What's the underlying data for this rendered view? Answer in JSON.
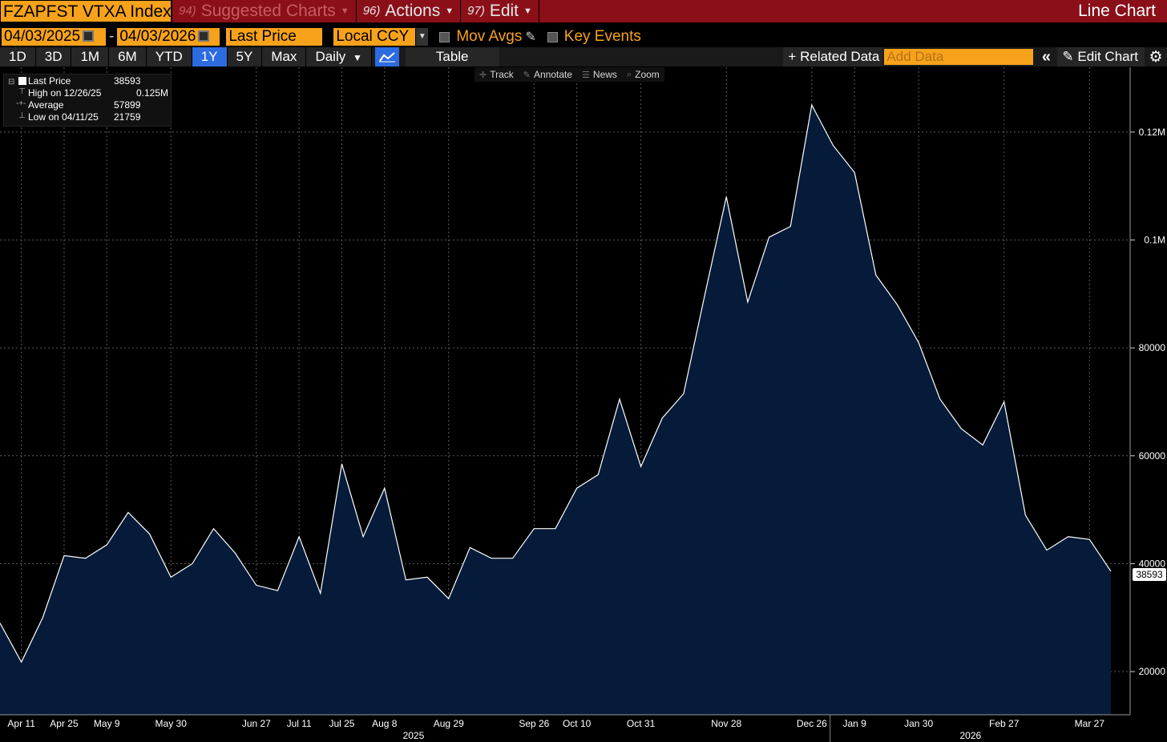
{
  "titlebar": {
    "ticker": "FZAPFST VTXA Index",
    "menu_suggested_num": "94)",
    "menu_suggested": "Suggested Charts",
    "menu_actions_num": "96)",
    "menu_actions": "Actions",
    "menu_edit_num": "97)",
    "menu_edit": "Edit",
    "view_name": "Line Chart"
  },
  "controls": {
    "start_date": "04/03/2025",
    "end_date": "04/03/2026",
    "date_separator": "-",
    "field": "Last Price",
    "currency": "Local CCY",
    "mov_avgs": "Mov Avgs",
    "key_events": "Key Events"
  },
  "periods": {
    "buttons": [
      "1D",
      "3D",
      "1M",
      "6M",
      "YTD",
      "1Y",
      "5Y",
      "Max"
    ],
    "active": "1Y",
    "frequency": "Daily",
    "table": "Table",
    "related_data": "Related Data",
    "add_data_placeholder": "Add Data",
    "edit_chart": "Edit Chart"
  },
  "toolbar": {
    "track": "Track",
    "annotate": "Annotate",
    "news": "News",
    "zoom": "Zoom"
  },
  "legend": {
    "last_label": "Last Price",
    "last_value": "38593",
    "high_label": "High on 12/26/25",
    "high_value": "0.125M",
    "avg_label": "Average",
    "avg_value": "57899",
    "low_label": "Low on 04/11/25",
    "low_value": "21759"
  },
  "last_badge": "38593",
  "chart_data": {
    "type": "area",
    "series": [
      {
        "name": "Last Price",
        "x": [
          "2025-04-04",
          "2025-04-11",
          "2025-04-18",
          "2025-04-25",
          "2025-05-02",
          "2025-05-09",
          "2025-05-16",
          "2025-05-23",
          "2025-05-30",
          "2025-06-06",
          "2025-06-13",
          "2025-06-20",
          "2025-06-27",
          "2025-07-04",
          "2025-07-11",
          "2025-07-18",
          "2025-07-25",
          "2025-08-01",
          "2025-08-08",
          "2025-08-15",
          "2025-08-22",
          "2025-08-29",
          "2025-09-05",
          "2025-09-12",
          "2025-09-19",
          "2025-09-26",
          "2025-10-03",
          "2025-10-10",
          "2025-10-17",
          "2025-10-24",
          "2025-10-31",
          "2025-11-07",
          "2025-11-14",
          "2025-11-21",
          "2025-11-28",
          "2025-12-05",
          "2025-12-12",
          "2025-12-19",
          "2025-12-26",
          "2026-01-02",
          "2026-01-09",
          "2026-01-16",
          "2026-01-23",
          "2026-01-30",
          "2026-02-06",
          "2026-02-13",
          "2026-02-20",
          "2026-02-27",
          "2026-03-06",
          "2026-03-13",
          "2026-03-20",
          "2026-03-27",
          "2026-04-03"
        ],
        "values": [
          29000,
          21759,
          30000,
          41500,
          41000,
          43500,
          49500,
          45500,
          37500,
          40000,
          46500,
          42000,
          36000,
          35000,
          45000,
          34500,
          58500,
          45000,
          54000,
          37000,
          37500,
          33500,
          43000,
          41000,
          41000,
          46500,
          46500,
          54000,
          56500,
          70500,
          58000,
          67000,
          71500,
          90000,
          108000,
          88500,
          100500,
          102500,
          125000,
          117500,
          112500,
          93500,
          88000,
          81000,
          70500,
          65000,
          62000,
          70000,
          49000,
          42500,
          45000,
          44500,
          38593
        ]
      }
    ],
    "x_tick_labels": [
      "Apr 11",
      "Apr 25",
      "May 9",
      "May 30",
      "Jun 27",
      "Jul 11",
      "Jul 25",
      "Aug 8",
      "Aug 29",
      "Sep 26",
      "Oct 10",
      "Oct 31",
      "Nov 28",
      "Dec 26",
      "Jan 9",
      "Jan 30",
      "Feb 27",
      "Mar 27"
    ],
    "year_labels": [
      "2025",
      "2026"
    ],
    "y_tick_labels": [
      "20000",
      "40000",
      "60000",
      "80000",
      "0.1M",
      "0.12M"
    ],
    "ylim": [
      12000,
      132000
    ],
    "grid": true,
    "line_color": "#ffffff",
    "fill_color": "#061b39",
    "background": "#000000"
  },
  "colors": {
    "title_bar": "#8a0f19",
    "accent_orange": "#f7a21a",
    "active_blue": "#2d6be0"
  }
}
